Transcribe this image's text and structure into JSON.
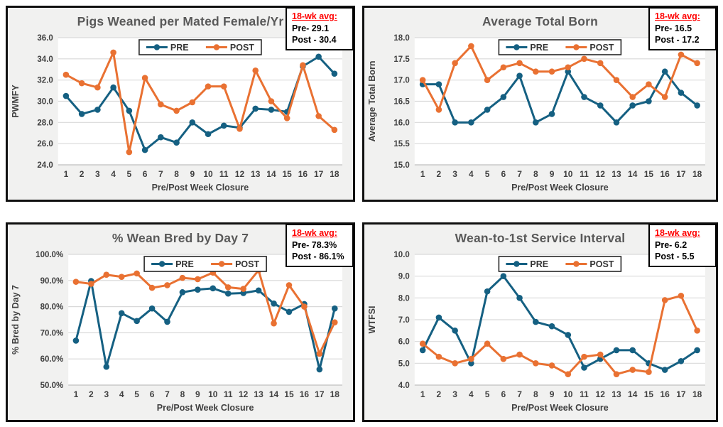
{
  "legend": {
    "pre_label": "PRE",
    "post_label": "POST"
  },
  "colors": {
    "pre": "#156082",
    "post": "#E97132",
    "avg_heading": "#ff0000",
    "title": "#595959",
    "tick": "#404040",
    "gridline": "#d9d9d9",
    "panel_bg": "#f1f1f0",
    "plot_bg": "#ffffff"
  },
  "chart_data": [
    {
      "type": "line",
      "title": "Pigs Weaned per Mated Female/Yr",
      "xlabel": "Pre/Post Week Closure",
      "ylabel": "PWMFY",
      "categories": [
        1,
        2,
        3,
        4,
        5,
        6,
        7,
        8,
        9,
        10,
        11,
        12,
        13,
        14,
        15,
        16,
        17,
        18
      ],
      "series": [
        {
          "name": "PRE",
          "color": "#156082",
          "values": [
            30.5,
            28.8,
            29.2,
            31.3,
            29.1,
            25.4,
            26.6,
            26.1,
            28.0,
            26.9,
            27.7,
            27.5,
            29.3,
            29.2,
            29.0,
            33.3,
            34.2,
            32.6
          ]
        },
        {
          "name": "POST",
          "color": "#E97132",
          "values": [
            32.5,
            31.7,
            31.3,
            34.6,
            25.2,
            32.2,
            29.7,
            29.1,
            29.9,
            31.4,
            31.4,
            27.4,
            32.9,
            30.0,
            28.4,
            33.4,
            28.6,
            27.3
          ]
        }
      ],
      "ylim": [
        24.0,
        36.0
      ],
      "ytick_step": 2.0,
      "ytick_decimals": 1,
      "ytick_suffix": "",
      "grid": true,
      "legend_position": "top-center",
      "avg_box": {
        "heading": "18-wk avg:",
        "pre_line": "Pre- 29.1",
        "post_line": "Post - 30.4"
      }
    },
    {
      "type": "line",
      "title": "Average Total Born",
      "xlabel": "Pre/Post Week Closure",
      "ylabel": "Average Total Born",
      "categories": [
        1,
        2,
        3,
        4,
        5,
        6,
        7,
        8,
        9,
        10,
        11,
        12,
        13,
        14,
        15,
        16,
        17,
        18
      ],
      "series": [
        {
          "name": "PRE",
          "color": "#156082",
          "values": [
            16.9,
            16.9,
            16.0,
            16.0,
            16.3,
            16.6,
            17.1,
            16.0,
            16.2,
            17.2,
            16.6,
            16.4,
            16.0,
            16.4,
            16.5,
            17.2,
            16.7,
            16.4
          ]
        },
        {
          "name": "POST",
          "color": "#E97132",
          "values": [
            17.0,
            16.3,
            17.4,
            17.8,
            17.0,
            17.3,
            17.4,
            17.2,
            17.2,
            17.3,
            17.5,
            17.4,
            17.0,
            16.6,
            16.9,
            16.6,
            17.6,
            17.4
          ]
        }
      ],
      "ylim": [
        15.0,
        18.0
      ],
      "ytick_step": 0.5,
      "ytick_decimals": 1,
      "ytick_suffix": "",
      "grid": true,
      "legend_position": "top-center",
      "avg_box": {
        "heading": "18-wk avg:",
        "pre_line": "Pre- 16.5",
        "post_line": "Post - 17.2"
      }
    },
    {
      "type": "line",
      "title": "% Wean Bred by Day 7",
      "xlabel": "Pre/Post Week Closure",
      "ylabel": "% Bred by Day 7",
      "categories": [
        1,
        2,
        3,
        4,
        5,
        6,
        7,
        8,
        9,
        10,
        11,
        12,
        13,
        14,
        15,
        16,
        17,
        18
      ],
      "series": [
        {
          "name": "PRE",
          "color": "#156082",
          "values": [
            67.0,
            89.8,
            57.0,
            77.5,
            74.5,
            79.3,
            74.2,
            85.5,
            86.5,
            87.0,
            85.0,
            85.2,
            86.2,
            81.2,
            78.0,
            81.0,
            56.0,
            79.3
          ]
        },
        {
          "name": "POST",
          "color": "#E97132",
          "values": [
            89.5,
            88.7,
            92.2,
            91.4,
            92.7,
            87.2,
            88.2,
            91.0,
            90.5,
            93.0,
            87.4,
            86.8,
            93.9,
            73.6,
            88.2,
            80.0,
            62.0,
            74.0
          ]
        }
      ],
      "ylim": [
        50.0,
        100.0
      ],
      "ytick_step": 10.0,
      "ytick_decimals": 1,
      "ytick_suffix": "%",
      "grid": true,
      "legend_position": "top-center",
      "avg_box": {
        "heading": "18-wk avg:",
        "pre_line": "Pre- 78.3%",
        "post_line": "Post - 86.1%"
      }
    },
    {
      "type": "line",
      "title": "Wean-to-1st Service Interval",
      "xlabel": "Pre/Post Week Closure",
      "ylabel": "WTFSI",
      "categories": [
        1,
        2,
        3,
        4,
        5,
        6,
        7,
        8,
        9,
        10,
        11,
        12,
        13,
        14,
        15,
        16,
        17,
        18
      ],
      "series": [
        {
          "name": "PRE",
          "color": "#156082",
          "values": [
            5.6,
            7.1,
            6.5,
            5.0,
            8.3,
            9.0,
            8.0,
            6.9,
            6.7,
            6.3,
            4.8,
            5.2,
            5.6,
            5.6,
            5.0,
            4.7,
            5.1,
            5.6
          ]
        },
        {
          "name": "POST",
          "color": "#E97132",
          "values": [
            5.9,
            5.3,
            5.0,
            5.2,
            5.9,
            5.2,
            5.4,
            5.0,
            4.9,
            4.5,
            5.3,
            5.4,
            4.5,
            4.7,
            4.6,
            7.9,
            8.1,
            6.5
          ]
        }
      ],
      "ylim": [
        4.0,
        10.0
      ],
      "ytick_step": 1.0,
      "ytick_decimals": 1,
      "ytick_suffix": "",
      "grid": true,
      "legend_position": "top-center",
      "avg_box": {
        "heading": "18-wk avg:",
        "pre_line": "Pre- 6.2",
        "post_line": "Post - 5.5"
      }
    }
  ]
}
